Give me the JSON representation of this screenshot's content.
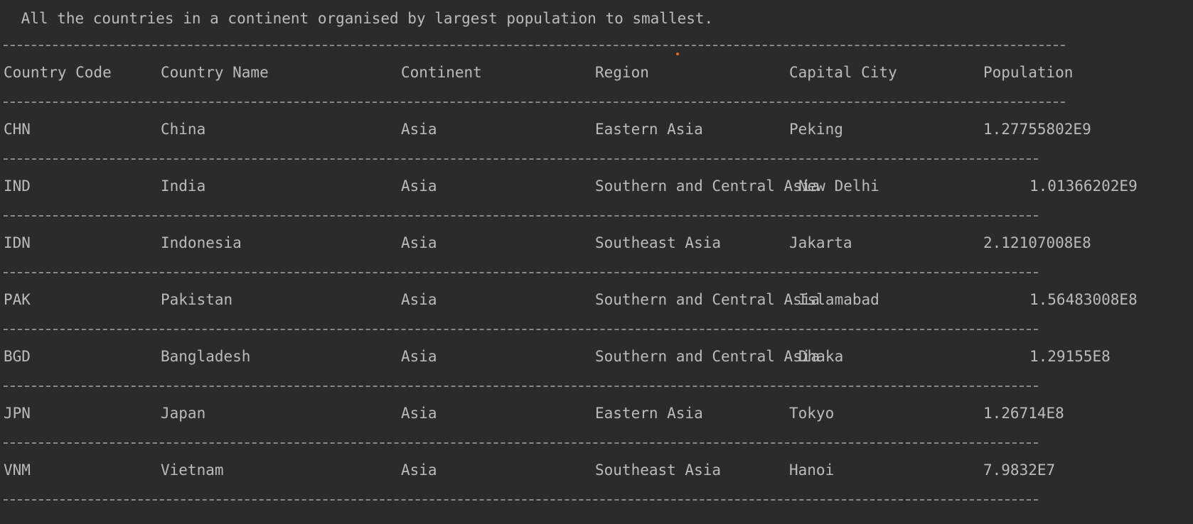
{
  "console": {
    "heading": " All the countries in a continent organised by largest population to smallest.",
    "header": {
      "code": "Country Code",
      "name": "Country Name",
      "continent": "Continent",
      "region": "Region",
      "capital": "Capital City",
      "population": "Population"
    },
    "rows": [
      {
        "code": "CHN",
        "name": "China",
        "continent": "Asia",
        "region": "Eastern Asia",
        "capital": "Peking",
        "population": "1.27755802E9"
      },
      {
        "code": "IND",
        "name": "India",
        "continent": "Asia",
        "region": "Southern and Central Asia",
        "capital": "New Delhi",
        "population": "1.01366202E9"
      },
      {
        "code": "IDN",
        "name": "Indonesia",
        "continent": "Asia",
        "region": "Southeast Asia",
        "capital": "Jakarta",
        "population": "2.12107008E8"
      },
      {
        "code": "PAK",
        "name": "Pakistan",
        "continent": "Asia",
        "region": "Southern and Central Asia",
        "capital": "Islamabad",
        "population": "1.56483008E8"
      },
      {
        "code": "BGD",
        "name": "Bangladesh",
        "continent": "Asia",
        "region": "Southern and Central Asia",
        "capital": "Dhaka",
        "population": "1.29155E8"
      },
      {
        "code": "JPN",
        "name": "Japan",
        "continent": "Asia",
        "region": "Eastern Asia",
        "capital": "Tokyo",
        "population": "1.26714E8"
      },
      {
        "code": "VNM",
        "name": "Vietnam",
        "continent": "Asia",
        "region": "Southeast Asia",
        "capital": "Hanoi",
        "population": "7.9832E7"
      }
    ],
    "colors": {
      "background": "#2b2b2b",
      "text": "#bbbbbb",
      "separator": "#8a8a8a",
      "marker": "#e06c1a"
    }
  }
}
